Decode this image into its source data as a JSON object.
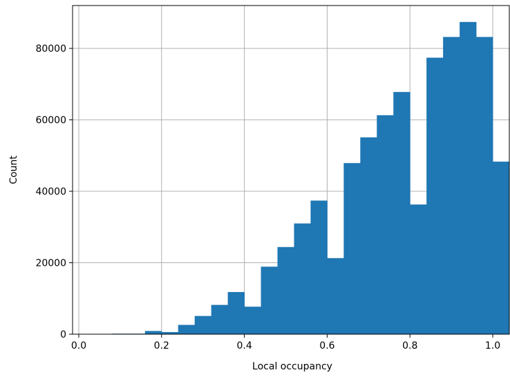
{
  "chart_data": {
    "type": "bar",
    "subtype": "histogram",
    "title": "",
    "xlabel": "Local occupancy",
    "ylabel": "Count",
    "xlim": [
      -0.015,
      1.04
    ],
    "ylim": [
      0,
      92000
    ],
    "grid": true,
    "bar_color": "#1f77b4",
    "grid_color": "#b0b0b0",
    "x_ticks": [
      {
        "value": 0.0,
        "label": "0.0"
      },
      {
        "value": 0.2,
        "label": "0.2"
      },
      {
        "value": 0.4,
        "label": "0.4"
      },
      {
        "value": 0.6,
        "label": "0.6"
      },
      {
        "value": 0.8,
        "label": "0.8"
      },
      {
        "value": 1.0,
        "label": "1.0"
      }
    ],
    "y_ticks": [
      {
        "value": 0,
        "label": "0"
      },
      {
        "value": 20000,
        "label": "20000"
      },
      {
        "value": 40000,
        "label": "40000"
      },
      {
        "value": 60000,
        "label": "60000"
      },
      {
        "value": 80000,
        "label": "80000"
      }
    ],
    "bins": [
      {
        "x0": 0.08,
        "x1": 0.12,
        "count": 150
      },
      {
        "x0": 0.12,
        "x1": 0.16,
        "count": 150
      },
      {
        "x0": 0.16,
        "x1": 0.2,
        "count": 900
      },
      {
        "x0": 0.2,
        "x1": 0.24,
        "count": 600
      },
      {
        "x0": 0.24,
        "x1": 0.28,
        "count": 2600
      },
      {
        "x0": 0.28,
        "x1": 0.32,
        "count": 5100
      },
      {
        "x0": 0.32,
        "x1": 0.36,
        "count": 8200
      },
      {
        "x0": 0.36,
        "x1": 0.4,
        "count": 11800
      },
      {
        "x0": 0.4,
        "x1": 0.44,
        "count": 7700
      },
      {
        "x0": 0.44,
        "x1": 0.48,
        "count": 18900
      },
      {
        "x0": 0.48,
        "x1": 0.52,
        "count": 24400
      },
      {
        "x0": 0.52,
        "x1": 0.56,
        "count": 31000
      },
      {
        "x0": 0.56,
        "x1": 0.6,
        "count": 37400
      },
      {
        "x0": 0.6,
        "x1": 0.64,
        "count": 21300
      },
      {
        "x0": 0.64,
        "x1": 0.68,
        "count": 47900
      },
      {
        "x0": 0.68,
        "x1": 0.72,
        "count": 55100
      },
      {
        "x0": 0.72,
        "x1": 0.76,
        "count": 61300
      },
      {
        "x0": 0.76,
        "x1": 0.8,
        "count": 67800
      },
      {
        "x0": 0.8,
        "x1": 0.84,
        "count": 36300
      },
      {
        "x0": 0.84,
        "x1": 0.88,
        "count": 77400
      },
      {
        "x0": 0.88,
        "x1": 0.92,
        "count": 83200
      },
      {
        "x0": 0.92,
        "x1": 0.96,
        "count": 87400
      },
      {
        "x0": 0.96,
        "x1": 1.0,
        "count": 83200
      },
      {
        "x0": 1.0,
        "x1": 1.04,
        "count": 48300
      }
    ]
  }
}
